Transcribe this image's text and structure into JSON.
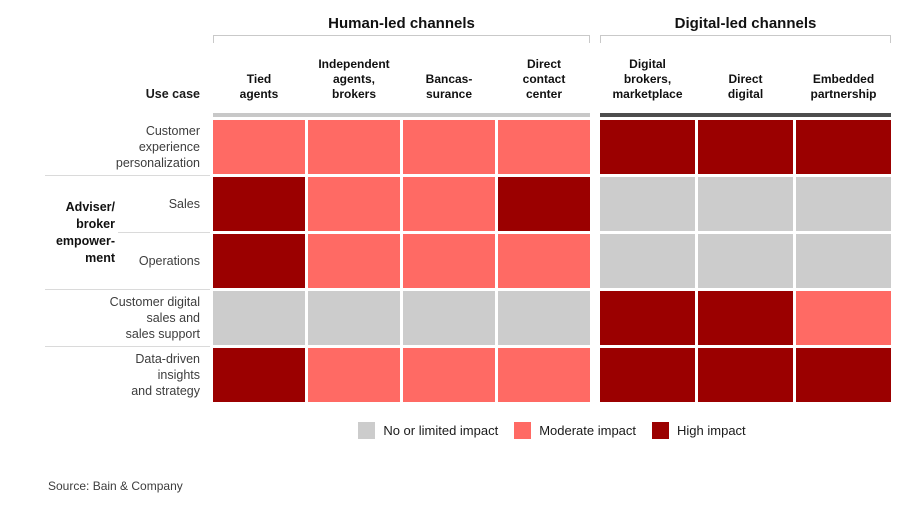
{
  "matrix": {
    "corner_label": "Use case",
    "groups": [
      {
        "label": "Human-led channels",
        "columns": [
          "Tied\nagents",
          "Independent\nagents,\nbrokers",
          "Bancas-\nsurance",
          "Direct\ncontact\ncenter"
        ]
      },
      {
        "label": "Digital-led channels",
        "columns": [
          "Digital\nbrokers,\nmarketplace",
          "Direct\ndigital",
          "Embedded\npartnership"
        ]
      }
    ],
    "row_group": {
      "label": "Adviser/\nbroker\nempower-\nment"
    },
    "rows": [
      {
        "label": "Customer\nexperience\npersonalization",
        "values": [
          "moderate",
          "moderate",
          "moderate",
          "moderate",
          "high",
          "high",
          "high"
        ]
      },
      {
        "label": "Sales",
        "values": [
          "high",
          "moderate",
          "moderate",
          "high",
          "none",
          "none",
          "none"
        ]
      },
      {
        "label": "Operations",
        "values": [
          "high",
          "moderate",
          "moderate",
          "moderate",
          "none",
          "none",
          "none"
        ]
      },
      {
        "label": "Customer digital\nsales and\nsales support",
        "values": [
          "none",
          "none",
          "none",
          "none",
          "high",
          "high",
          "moderate"
        ]
      },
      {
        "label": "Data-driven\ninsights\nand strategy",
        "values": [
          "high",
          "moderate",
          "moderate",
          "moderate",
          "high",
          "high",
          "high"
        ]
      }
    ]
  },
  "legend": {
    "items": [
      {
        "level": "none",
        "label": "No or limited impact"
      },
      {
        "level": "moderate",
        "label": "Moderate impact"
      },
      {
        "level": "high",
        "label": "High impact"
      }
    ]
  },
  "colors": {
    "none": "#CCCCCC",
    "moderate": "#FF6A64",
    "high": "#9B0000",
    "human_bar": "#C8C8C8",
    "digital_bar": "#4D4D4D"
  },
  "source": "Source: Bain & Company",
  "chart_data": {
    "type": "heatmap",
    "title": "",
    "columns": [
      "Tied agents",
      "Independent agents, brokers",
      "Bancassurance",
      "Direct contact center",
      "Digital brokers, marketplace",
      "Direct digital",
      "Embedded partnership"
    ],
    "column_groups": [
      {
        "label": "Human-led channels",
        "columns": [
          "Tied agents",
          "Independent agents, brokers",
          "Bancassurance",
          "Direct contact center"
        ]
      },
      {
        "label": "Digital-led channels",
        "columns": [
          "Digital brokers, marketplace",
          "Direct digital",
          "Embedded partnership"
        ]
      }
    ],
    "rows": [
      "Customer experience personalization",
      "Sales",
      "Operations",
      "Customer digital sales and sales support",
      "Data-driven insights and strategy"
    ],
    "row_group": {
      "label": "Adviser/broker empowerment",
      "rows": [
        "Sales",
        "Operations"
      ]
    },
    "values": [
      [
        "moderate",
        "moderate",
        "moderate",
        "moderate",
        "high",
        "high",
        "high"
      ],
      [
        "high",
        "moderate",
        "moderate",
        "high",
        "none",
        "none",
        "none"
      ],
      [
        "high",
        "moderate",
        "moderate",
        "moderate",
        "none",
        "none",
        "none"
      ],
      [
        "none",
        "none",
        "none",
        "none",
        "high",
        "high",
        "moderate"
      ],
      [
        "high",
        "moderate",
        "moderate",
        "moderate",
        "high",
        "high",
        "high"
      ]
    ],
    "scale": {
      "none": "No or limited impact",
      "moderate": "Moderate impact",
      "high": "High impact"
    },
    "legend_position": "bottom",
    "source": "Source: Bain & Company"
  }
}
